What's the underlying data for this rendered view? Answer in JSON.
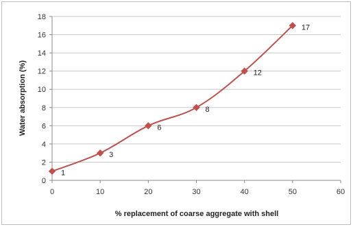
{
  "chart_data": {
    "type": "line",
    "title": "",
    "xlabel": "% replacement of coarse aggregate with shell",
    "ylabel": "Water absorption (%)",
    "xlim": [
      0,
      60
    ],
    "ylim": [
      0,
      18
    ],
    "x_ticks": [
      0,
      10,
      20,
      30,
      40,
      50,
      60
    ],
    "y_ticks": [
      0,
      2,
      4,
      6,
      8,
      10,
      12,
      14,
      16,
      18
    ],
    "grid": "horizontal",
    "legend": "none",
    "series": [
      {
        "color": "#c0504d",
        "marker": "diamond",
        "smooth": true,
        "x": [
          0,
          10,
          20,
          30,
          40,
          50
        ],
        "y": [
          1,
          3,
          6,
          8,
          12,
          17
        ],
        "labels": [
          "1",
          "3",
          "6",
          "8",
          "12",
          "17"
        ]
      }
    ]
  }
}
